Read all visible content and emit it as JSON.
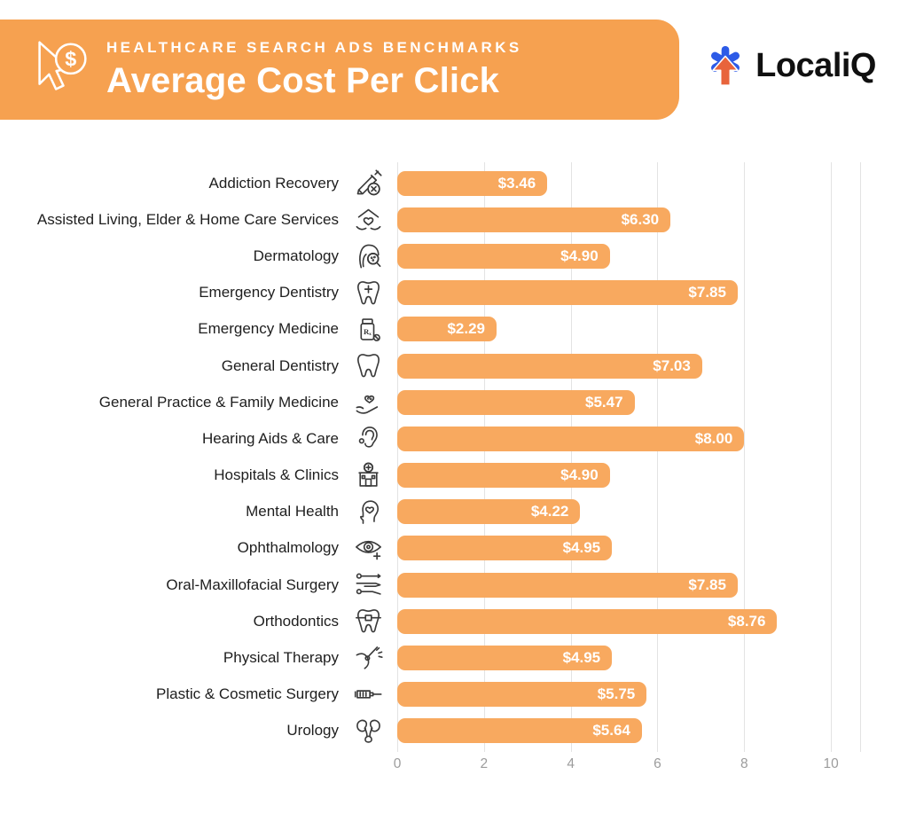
{
  "header": {
    "eyebrow": "HEALTHCARE SEARCH ADS BENCHMARKS",
    "title": "Average Cost Per Click",
    "banner_color": "#F6A150",
    "text_color": "#FFFFFF",
    "icon": "cursor-dollar-icon",
    "dollar_sign": "$"
  },
  "brand": {
    "name": "LocaliQ",
    "icon": "localiq-asterisk-icon",
    "blue": "#2D5BE7",
    "orange": "#E8643C"
  },
  "chart_data": {
    "type": "bar",
    "orientation": "horizontal",
    "title": "Average Cost Per Click",
    "subtitle": "Healthcare Search Ads Benchmarks",
    "unit": "USD",
    "xlabel": "",
    "ylabel": "",
    "xlim": [
      0,
      10
    ],
    "x_ticks": [
      0,
      2,
      4,
      6,
      8,
      10
    ],
    "tick_labels": [
      "0",
      "2",
      "4",
      "6",
      "8",
      "10"
    ],
    "grid": true,
    "legend": false,
    "bar_color": "#F8A95F",
    "value_label_color": "#FFFFFF",
    "gridline_color": "#E3E3E3",
    "rows": [
      {
        "category": "Addiction Recovery",
        "value": 3.46,
        "label": "$3.46",
        "icon": "syringe-crossed"
      },
      {
        "category": "Assisted Living, Elder & Home Care Services",
        "value": 6.3,
        "label": "$6.30",
        "icon": "home-heart-hands"
      },
      {
        "category": "Dermatology",
        "value": 4.9,
        "label": "$4.90",
        "icon": "face-magnifier"
      },
      {
        "category": "Emergency Dentistry",
        "value": 7.85,
        "label": "$7.85",
        "icon": "tooth-cross"
      },
      {
        "category": "Emergency Medicine",
        "value": 2.29,
        "label": "$2.29",
        "icon": "rx-bottle"
      },
      {
        "category": "General Dentistry",
        "value": 7.03,
        "label": "$7.03",
        "icon": "tooth"
      },
      {
        "category": "General Practice & Family Medicine",
        "value": 5.47,
        "label": "$5.47",
        "icon": "hand-heart"
      },
      {
        "category": "Hearing Aids & Care",
        "value": 8.0,
        "label": "$8.00",
        "icon": "ear"
      },
      {
        "category": "Hospitals & Clinics",
        "value": 4.9,
        "label": "$4.90",
        "icon": "hospital-building"
      },
      {
        "category": "Mental Health",
        "value": 4.22,
        "label": "$4.22",
        "icon": "head-heart"
      },
      {
        "category": "Ophthalmology",
        "value": 4.95,
        "label": "$4.95",
        "icon": "eye-plus"
      },
      {
        "category": "Oral-Maxillofacial Surgery",
        "value": 7.85,
        "label": "$7.85",
        "icon": "surgical-tools"
      },
      {
        "category": "Orthodontics",
        "value": 8.76,
        "label": "$8.76",
        "icon": "tooth-braces"
      },
      {
        "category": "Physical Therapy",
        "value": 4.95,
        "label": "$4.95",
        "icon": "knee-joint"
      },
      {
        "category": "Plastic & Cosmetic Surgery",
        "value": 5.75,
        "label": "$5.75",
        "icon": "syringe"
      },
      {
        "category": "Urology",
        "value": 5.64,
        "label": "$5.64",
        "icon": "kidneys"
      }
    ]
  }
}
